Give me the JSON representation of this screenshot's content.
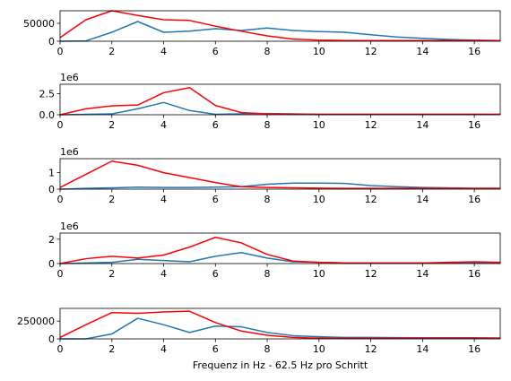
{
  "chart_data": [
    {
      "type": "line",
      "x": [
        0,
        1,
        2,
        3,
        4,
        5,
        6,
        7,
        8,
        9,
        10,
        11,
        12,
        13,
        14,
        15,
        16,
        17
      ],
      "xlim": [
        0,
        17
      ],
      "ylim": [
        0,
        85000
      ],
      "yticks": [
        0,
        50000
      ],
      "ytick_labels": [
        "0",
        "50000"
      ],
      "xticks": [
        0,
        2,
        4,
        6,
        8,
        10,
        12,
        14,
        16
      ],
      "xtick_labels": [
        "0",
        "2",
        "4",
        "6",
        "8",
        "10",
        "12",
        "14",
        "16"
      ],
      "offset_text": "",
      "series": [
        {
          "color": "#1f77b4",
          "values": [
            0,
            1000,
            25000,
            55000,
            25000,
            28000,
            35000,
            30000,
            37000,
            30000,
            27000,
            25000,
            18000,
            12000,
            8000,
            5000,
            3000,
            2000
          ]
        },
        {
          "color": "#ff0000",
          "values": [
            10000,
            60000,
            85000,
            72000,
            60000,
            58000,
            42000,
            28000,
            15000,
            6000,
            3000,
            2000,
            2000,
            2000,
            2000,
            2000,
            2000,
            2000
          ]
        }
      ]
    },
    {
      "type": "line",
      "x": [
        0,
        1,
        2,
        3,
        4,
        5,
        6,
        7,
        8,
        9,
        10,
        11,
        12,
        13,
        14,
        15,
        16,
        17
      ],
      "xlim": [
        0,
        17
      ],
      "ylim": [
        0,
        3.6
      ],
      "yticks": [
        0,
        2.5
      ],
      "ytick_labels": [
        "0.0",
        "2.5"
      ],
      "xticks": [
        0,
        2,
        4,
        6,
        8,
        10,
        12,
        14,
        16
      ],
      "xtick_labels": [
        "0",
        "2",
        "4",
        "6",
        "8",
        "10",
        "12",
        "14",
        "16"
      ],
      "offset_text": "1e6",
      "series": [
        {
          "color": "#1f77b4",
          "values": [
            0,
            0.05,
            0.1,
            0.7,
            1.45,
            0.5,
            0.05,
            0.1,
            0.15,
            0.1,
            0.05,
            0.05,
            0.05,
            0.05,
            0.05,
            0.05,
            0.05,
            0.05
          ]
        },
        {
          "color": "#ff0000",
          "values": [
            0,
            0.7,
            1.05,
            1.15,
            2.6,
            3.2,
            1.1,
            0.25,
            0.1,
            0.05,
            0.05,
            0.05,
            0.05,
            0.05,
            0.05,
            0.05,
            0.05,
            0.05
          ]
        }
      ]
    },
    {
      "type": "line",
      "x": [
        0,
        1,
        2,
        3,
        4,
        5,
        6,
        7,
        8,
        9,
        10,
        11,
        12,
        13,
        14,
        15,
        16,
        17
      ],
      "xlim": [
        0,
        17
      ],
      "ylim": [
        0,
        1.85
      ],
      "yticks": [
        0,
        1
      ],
      "ytick_labels": [
        "0",
        "1"
      ],
      "xticks": [
        0,
        2,
        4,
        6,
        8,
        10,
        12,
        14,
        16
      ],
      "xtick_labels": [
        "0",
        "2",
        "4",
        "6",
        "8",
        "10",
        "12",
        "14",
        "16"
      ],
      "offset_text": "1e6",
      "series": [
        {
          "color": "#1f77b4",
          "values": [
            0,
            0.05,
            0.08,
            0.12,
            0.1,
            0.1,
            0.12,
            0.15,
            0.3,
            0.37,
            0.37,
            0.35,
            0.22,
            0.15,
            0.1,
            0.08,
            0.05,
            0.05
          ]
        },
        {
          "color": "#ff0000",
          "values": [
            0.1,
            0.9,
            1.7,
            1.45,
            1.0,
            0.7,
            0.4,
            0.15,
            0.1,
            0.08,
            0.06,
            0.05,
            0.05,
            0.05,
            0.05,
            0.05,
            0.05,
            0.05
          ]
        }
      ]
    },
    {
      "type": "line",
      "x": [
        0,
        1,
        2,
        3,
        4,
        5,
        6,
        7,
        8,
        9,
        10,
        11,
        12,
        13,
        14,
        15,
        16,
        17
      ],
      "xlim": [
        0,
        17
      ],
      "ylim": [
        0,
        2.5
      ],
      "yticks": [
        0,
        2
      ],
      "ytick_labels": [
        "0",
        "2"
      ],
      "xticks": [
        0,
        2,
        4,
        6,
        8,
        10,
        12,
        14,
        16
      ],
      "xtick_labels": [
        "0",
        "2",
        "4",
        "6",
        "8",
        "10",
        "12",
        "14",
        "16"
      ],
      "offset_text": "1e6",
      "series": [
        {
          "color": "#1f77b4",
          "values": [
            0,
            0.05,
            0.1,
            0.35,
            0.25,
            0.15,
            0.6,
            0.9,
            0.45,
            0.15,
            0.1,
            0.05,
            0.05,
            0.05,
            0.05,
            0.05,
            0.05,
            0.05
          ]
        },
        {
          "color": "#ff0000",
          "values": [
            0,
            0.4,
            0.6,
            0.45,
            0.7,
            1.35,
            2.15,
            1.7,
            0.75,
            0.2,
            0.1,
            0.05,
            0.05,
            0.05,
            0.05,
            0.1,
            0.15,
            0.1
          ]
        }
      ]
    },
    {
      "type": "line",
      "x": [
        0,
        1,
        2,
        3,
        4,
        5,
        6,
        7,
        8,
        9,
        10,
        11,
        12,
        13,
        14,
        15,
        16,
        17
      ],
      "xlim": [
        0,
        17
      ],
      "ylim": [
        0,
        430000
      ],
      "yticks": [
        0,
        250000
      ],
      "ytick_labels": [
        "0",
        "250000"
      ],
      "xticks": [
        0,
        2,
        4,
        6,
        8,
        10,
        12,
        14,
        16
      ],
      "xtick_labels": [
        "0",
        "2",
        "4",
        "6",
        "8",
        "10",
        "12",
        "14",
        "16"
      ],
      "offset_text": "",
      "xlabel": "Frequenz in Hz - 62.5 Hz pro Schritt",
      "series": [
        {
          "color": "#1f77b4",
          "values": [
            0,
            0,
            70000,
            290000,
            200000,
            90000,
            180000,
            170000,
            90000,
            45000,
            30000,
            20000,
            20000,
            18000,
            15000,
            15000,
            15000,
            12000
          ]
        },
        {
          "color": "#ff0000",
          "values": [
            20000,
            200000,
            370000,
            360000,
            380000,
            390000,
            230000,
            110000,
            50000,
            20000,
            10000,
            8000,
            8000,
            8000,
            8000,
            8000,
            8000,
            8000
          ]
        }
      ]
    }
  ]
}
